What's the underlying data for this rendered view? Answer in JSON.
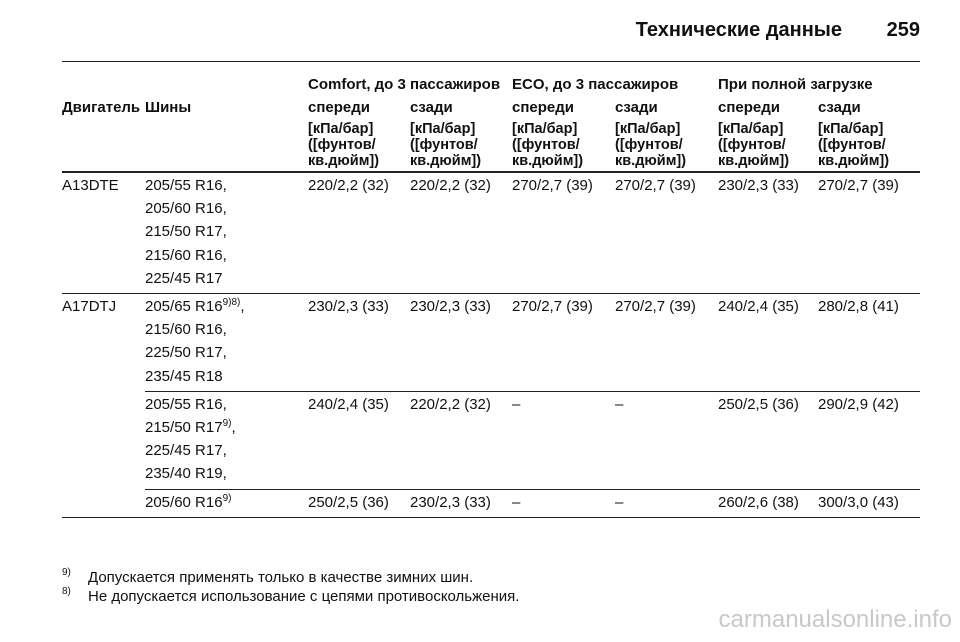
{
  "header": {
    "title": "Технические данные",
    "page_number": "259"
  },
  "table": {
    "groups": [
      "Comfort, до 3 пассажиров",
      "ECO, до 3 пассажиров",
      "При полной загрузке"
    ],
    "columns": [
      "Двигатель",
      "Шины",
      "спереди",
      "сзади",
      "спереди",
      "сзади",
      "спереди",
      "сзади"
    ],
    "units": [
      "[кПа/бар]\n([фунтов/\nкв.дюйм])",
      "[кПа/бар]\n([фунтов/\nкв.дюйм])",
      "[кПа/бар]\n([фунтов/\nкв.дюйм])",
      "[кПа/бар]\n([фунтов/\nкв.дюйм])",
      "[кПа/бар]\n([фунтов/\nкв.дюйм])",
      "[кПа/бар]\n([фунтов/\nкв.дюйм])"
    ],
    "rows": [
      {
        "engine": "A13DTE",
        "tires": [
          {
            "text": "205/55 R16,"
          },
          {
            "text": "205/60 R16,"
          },
          {
            "text": "215/50 R17,"
          },
          {
            "text": "215/60 R16,"
          },
          {
            "text": "225/45 R17"
          }
        ],
        "values": [
          "220/2,2 (32)",
          "220/2,2 (32)",
          "270/2,7 (39)",
          "270/2,7 (39)",
          "230/2,3 (33)",
          "270/2,7 (39)"
        ]
      },
      {
        "engine": "A17DTJ",
        "tires": [
          {
            "text": "205/65 R16",
            "note": "9)8)",
            "tail": ","
          },
          {
            "text": "215/60 R16,"
          },
          {
            "text": "225/50 R17,"
          },
          {
            "text": "235/45 R18"
          }
        ],
        "values": [
          "230/2,3 (33)",
          "230/2,3 (33)",
          "270/2,7 (39)",
          "270/2,7 (39)",
          "240/2,4 (35)",
          "280/2,8 (41)"
        ]
      },
      {
        "engine": null,
        "tires": [
          {
            "text": "205/55 R16,"
          },
          {
            "text": "215/50 R17",
            "note": "9)",
            "tail": ","
          },
          {
            "text": "225/45 R17,"
          },
          {
            "text": "235/40 R19,"
          }
        ],
        "values": [
          "240/2,4 (35)",
          "220/2,2 (32)",
          "–",
          "–",
          "250/2,5 (36)",
          "290/2,9 (42)"
        ]
      },
      {
        "engine": null,
        "tires": [
          {
            "text": "205/60 R16",
            "note": "9)"
          }
        ],
        "values": [
          "250/2,5 (36)",
          "230/2,3 (33)",
          "–",
          "–",
          "260/2,6 (38)",
          "300/3,0 (43)"
        ]
      }
    ]
  },
  "footnotes": [
    {
      "mark": "9)",
      "text": "Допускается применять только в качестве зимних шин."
    },
    {
      "mark": "8)",
      "text": "Не допускается использование с цепями противоскольжения."
    }
  ],
  "watermark": "carmanualsonline.info"
}
